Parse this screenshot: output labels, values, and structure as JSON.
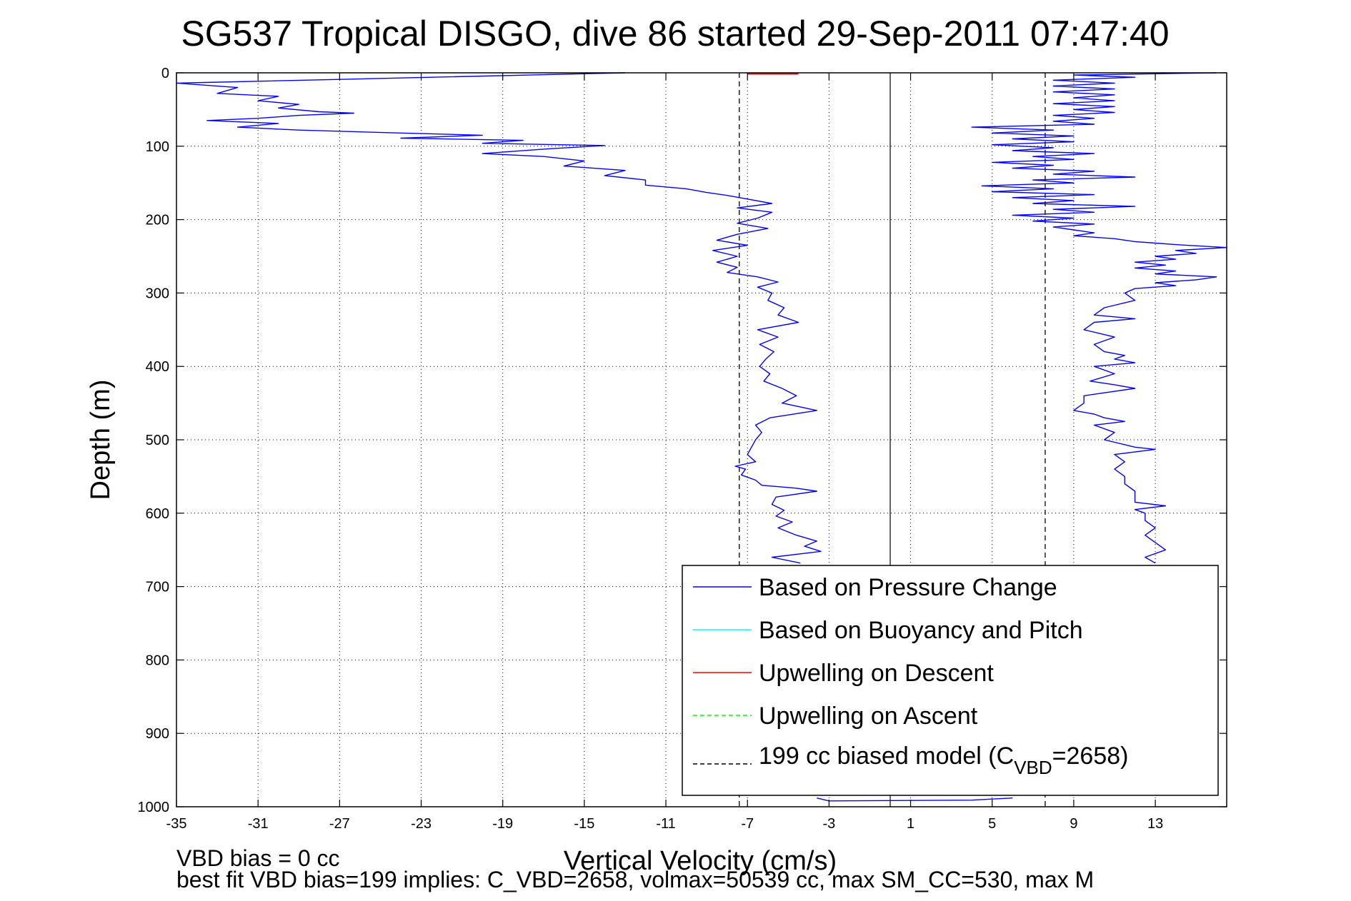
{
  "chart_data": {
    "type": "line",
    "title": "SG537 Tropical DISGO, dive 86 started 29-Sep-2011 07:47:40",
    "xlabel": "Vertical Velocity (cm/s)",
    "ylabel": "Depth (m)",
    "xlim": [
      -35,
      16.5
    ],
    "ylim": [
      0,
      1000
    ],
    "y_reversed": true,
    "grid": true,
    "x_ticks": [
      -35,
      -31,
      -27,
      -23,
      -19,
      -15,
      -11,
      -7,
      -3,
      1,
      5,
      9,
      13
    ],
    "x_tick_labels": [
      "-35",
      "-31",
      "-27",
      "-23",
      "-19",
      "-15",
      "-11",
      "-7",
      "-3",
      "1",
      "5",
      "9",
      "13"
    ],
    "y_ticks": [
      0,
      100,
      200,
      300,
      400,
      500,
      600,
      700,
      800,
      900,
      1000
    ],
    "y_tick_labels": [
      "0",
      "100",
      "200",
      "300",
      "400",
      "500",
      "600",
      "700",
      "800",
      "900",
      "1000"
    ],
    "legend_position": "bottom-right",
    "legend": [
      {
        "label": "Based on Pressure Change",
        "color": "#0000ff",
        "style": "solid"
      },
      {
        "label": "Based on Buoyancy and Pitch",
        "color": "#00ffff",
        "style": "solid"
      },
      {
        "label": "Upwelling on Descent",
        "color": "#ff0000",
        "style": "solid"
      },
      {
        "label": "Upwelling on Ascent",
        "color": "#00ff00",
        "style": "dashed"
      },
      {
        "label_main": "199 cc biased model (C",
        "label_sub": "VBD",
        "label_tail": "=2658)",
        "color": "#000000",
        "style": "dashed"
      }
    ],
    "series": [
      {
        "name": "Based on Pressure Change",
        "segment": "descent",
        "color": "#0000ff",
        "points": [
          [
            -13,
            0
          ],
          [
            -35,
            14
          ],
          [
            -32,
            20
          ],
          [
            -33,
            28
          ],
          [
            -30,
            32
          ],
          [
            -31,
            38
          ],
          [
            -29,
            43
          ],
          [
            -30,
            48
          ],
          [
            -28,
            53
          ],
          [
            -26.3,
            55
          ],
          [
            -29,
            58
          ],
          [
            -31,
            62
          ],
          [
            -33.5,
            65
          ],
          [
            -30,
            69
          ],
          [
            -32,
            74
          ],
          [
            -29,
            78
          ],
          [
            -24,
            82
          ],
          [
            -20,
            85
          ],
          [
            -24,
            89
          ],
          [
            -18,
            92
          ],
          [
            -20,
            96
          ],
          [
            -14,
            99
          ],
          [
            -17,
            104
          ],
          [
            -20,
            110
          ],
          [
            -17,
            114
          ],
          [
            -15,
            120
          ],
          [
            -16,
            127
          ],
          [
            -13,
            133
          ],
          [
            -14,
            140
          ],
          [
            -12,
            146
          ],
          [
            -12,
            153
          ],
          [
            -10,
            158
          ],
          [
            -9,
            163
          ],
          [
            -8,
            167
          ],
          [
            -7,
            172
          ],
          [
            -5.8,
            178
          ],
          [
            -7.5,
            184
          ],
          [
            -5.8,
            190
          ],
          [
            -6.5,
            198
          ],
          [
            -7.5,
            205
          ],
          [
            -6,
            212
          ],
          [
            -7.5,
            220
          ],
          [
            -8.5,
            228
          ],
          [
            -7,
            235
          ],
          [
            -8.7,
            242
          ],
          [
            -7.5,
            250
          ],
          [
            -8.5,
            258
          ],
          [
            -7.5,
            265
          ],
          [
            -8,
            272
          ],
          [
            -6.5,
            278
          ],
          [
            -5.5,
            285
          ],
          [
            -6.5,
            292
          ],
          [
            -5.8,
            300
          ],
          [
            -6,
            310
          ],
          [
            -5.2,
            320
          ],
          [
            -5.5,
            330
          ],
          [
            -4.5,
            340
          ],
          [
            -6.5,
            350
          ],
          [
            -5.5,
            360
          ],
          [
            -6.4,
            370
          ],
          [
            -5.7,
            380
          ],
          [
            -6.1,
            390
          ],
          [
            -6.4,
            400
          ],
          [
            -5.9,
            410
          ],
          [
            -6.2,
            420
          ],
          [
            -5.3,
            430
          ],
          [
            -4.6,
            440
          ],
          [
            -5.3,
            450
          ],
          [
            -3.6,
            460
          ],
          [
            -5.9,
            470
          ],
          [
            -6.6,
            480
          ],
          [
            -6.3,
            490
          ],
          [
            -6.6,
            500
          ],
          [
            -6.8,
            510
          ],
          [
            -7,
            520
          ],
          [
            -6.6,
            530
          ],
          [
            -7.6,
            536
          ],
          [
            -7.1,
            540
          ],
          [
            -7.3,
            548
          ],
          [
            -6.6,
            555
          ],
          [
            -6.3,
            562
          ],
          [
            -4.6,
            566
          ],
          [
            -3.6,
            570
          ],
          [
            -5.6,
            578
          ],
          [
            -5.8,
            588
          ],
          [
            -5.2,
            596
          ],
          [
            -5.6,
            604
          ],
          [
            -4.8,
            612
          ],
          [
            -5.5,
            620
          ],
          [
            -4.6,
            630
          ],
          [
            -3.6,
            638
          ],
          [
            -4.2,
            645
          ],
          [
            -3.4,
            652
          ],
          [
            -5.8,
            660
          ],
          [
            -4.4,
            668
          ]
        ]
      },
      {
        "name": "Based on Pressure Change",
        "segment": "ascent",
        "color": "#0000ff",
        "points": [
          [
            16,
            0
          ],
          [
            9,
            3
          ],
          [
            12,
            6
          ],
          [
            8,
            10
          ],
          [
            11,
            14
          ],
          [
            8,
            18
          ],
          [
            11,
            22
          ],
          [
            8,
            26
          ],
          [
            11,
            30
          ],
          [
            9,
            34
          ],
          [
            11,
            38
          ],
          [
            8,
            42
          ],
          [
            11,
            46
          ],
          [
            9,
            50
          ],
          [
            11,
            54
          ],
          [
            8,
            58
          ],
          [
            10,
            62
          ],
          [
            8,
            66
          ],
          [
            10,
            70
          ],
          [
            4,
            74
          ],
          [
            8,
            78
          ],
          [
            5,
            82
          ],
          [
            9,
            86
          ],
          [
            6,
            90
          ],
          [
            9,
            94
          ],
          [
            5,
            98
          ],
          [
            8,
            102
          ],
          [
            6,
            106
          ],
          [
            10,
            110
          ],
          [
            7,
            114
          ],
          [
            9,
            118
          ],
          [
            5,
            122
          ],
          [
            8,
            126
          ],
          [
            6,
            130
          ],
          [
            10,
            134
          ],
          [
            8,
            138
          ],
          [
            12,
            142
          ],
          [
            7,
            146
          ],
          [
            9,
            150
          ],
          [
            4.5,
            154
          ],
          [
            8,
            158
          ],
          [
            5,
            162
          ],
          [
            10,
            166
          ],
          [
            6,
            170
          ],
          [
            9,
            174
          ],
          [
            7,
            178
          ],
          [
            12,
            182
          ],
          [
            8,
            186
          ],
          [
            10,
            190
          ],
          [
            6,
            194
          ],
          [
            9,
            198
          ],
          [
            7,
            202
          ],
          [
            10,
            206
          ],
          [
            8,
            210
          ],
          [
            9,
            214
          ],
          [
            10,
            218
          ],
          [
            9,
            222
          ],
          [
            11,
            226
          ],
          [
            12,
            230
          ],
          [
            13,
            232
          ],
          [
            14,
            234
          ],
          [
            16.5,
            238
          ],
          [
            14,
            242
          ],
          [
            15,
            246
          ],
          [
            13,
            250
          ],
          [
            14,
            254
          ],
          [
            12,
            258
          ],
          [
            13.5,
            262
          ],
          [
            12,
            266
          ],
          [
            14,
            270
          ],
          [
            13,
            274
          ],
          [
            16,
            278
          ],
          [
            15,
            282
          ],
          [
            13,
            286
          ],
          [
            14,
            290
          ],
          [
            12,
            294
          ],
          [
            11.5,
            300
          ],
          [
            12,
            310
          ],
          [
            10.5,
            320
          ],
          [
            10,
            330
          ],
          [
            12,
            335
          ],
          [
            10,
            340
          ],
          [
            9.5,
            350
          ],
          [
            11,
            360
          ],
          [
            10,
            370
          ],
          [
            10.5,
            380
          ],
          [
            11.5,
            385
          ],
          [
            11,
            390
          ],
          [
            12,
            395
          ],
          [
            10,
            400
          ],
          [
            11,
            410
          ],
          [
            9.8,
            420
          ],
          [
            11,
            425
          ],
          [
            12,
            430
          ],
          [
            9.5,
            440
          ],
          [
            9.5,
            450
          ],
          [
            9,
            460
          ],
          [
            10,
            465
          ],
          [
            10.5,
            470
          ],
          [
            11.5,
            475
          ],
          [
            10,
            480
          ],
          [
            11,
            490
          ],
          [
            10.5,
            500
          ],
          [
            12,
            510
          ],
          [
            13,
            513
          ],
          [
            11,
            520
          ],
          [
            11.5,
            530
          ],
          [
            11,
            540
          ],
          [
            11.5,
            550
          ],
          [
            11.5,
            560
          ],
          [
            12,
            570
          ],
          [
            12,
            580
          ],
          [
            12,
            585
          ],
          [
            13.5,
            590
          ],
          [
            12,
            595
          ],
          [
            12.5,
            600
          ],
          [
            12.5,
            610
          ],
          [
            13,
            620
          ],
          [
            12.5,
            630
          ],
          [
            13,
            640
          ],
          [
            13.5,
            650
          ],
          [
            12.5,
            660
          ],
          [
            13,
            668
          ]
        ]
      },
      {
        "name": "Upwelling on Descent",
        "color": "#ff0000",
        "points": [
          [
            -7,
            1.5
          ],
          [
            -4.5,
            1.5
          ]
        ]
      },
      {
        "name": "199 cc biased model (C_VBD=2658)",
        "color": "#000000",
        "dashed": true,
        "points_left": [
          [
            -7.4,
            0
          ],
          [
            -7.4,
            1000
          ]
        ],
        "points_right": [
          [
            7.6,
            0
          ],
          [
            7.6,
            1000
          ]
        ]
      }
    ],
    "zero_line_x": 0,
    "bottom_trace": [
      [
        -3.6,
        988
      ],
      [
        -3,
        992
      ],
      [
        4,
        991
      ],
      [
        6,
        988
      ]
    ]
  },
  "footer": {
    "line1": "VBD bias = 0 cc",
    "line2": "best fit VBD bias=199 implies: C_VBD=2658, volmax=50539 cc, max SM_CC=530, max M"
  }
}
